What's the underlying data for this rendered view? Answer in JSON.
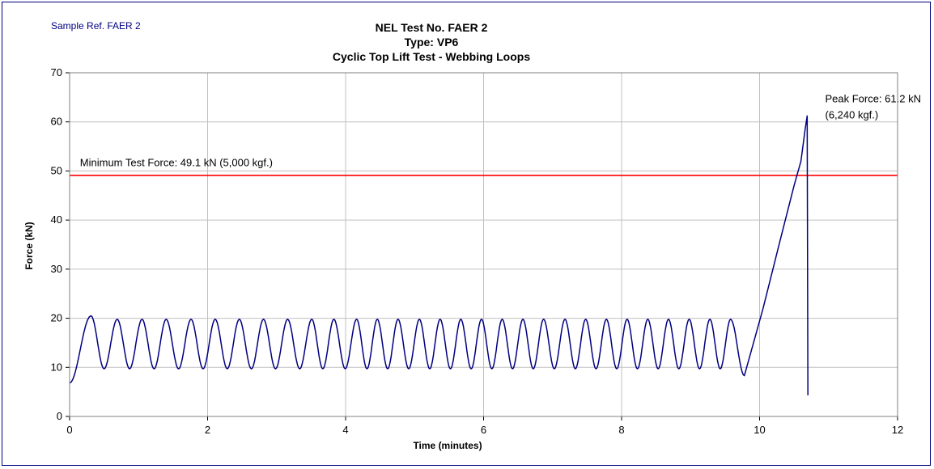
{
  "sample_ref": "Sample Ref. FAER 2",
  "chart_data": {
    "type": "line",
    "title": [
      "NEL Test No. FAER 2",
      "Type: VP6",
      "Cyclic Top Lift Test - Webbing Loops"
    ],
    "xlabel": "Time (minutes)",
    "ylabel": "Force (kN)",
    "xlim": [
      0,
      12
    ],
    "ylim": [
      0,
      70
    ],
    "x_ticks": [
      0,
      2,
      4,
      6,
      8,
      10,
      12
    ],
    "y_ticks": [
      0,
      10,
      20,
      30,
      40,
      50,
      60,
      70
    ],
    "grid": true,
    "series": [
      {
        "color": "#000080",
        "cycles": {
          "start_x": 0.0,
          "start_y": 6.8,
          "first_peak": {
            "x": 0.31,
            "y": 20.5
          },
          "peak_x": [
            0.31,
            0.69,
            1.05,
            1.4,
            1.76,
            2.11,
            2.46,
            2.81,
            3.16,
            3.51,
            3.83,
            4.16,
            4.46,
            4.76,
            5.07,
            5.37,
            5.67,
            5.97,
            6.27,
            6.57,
            6.87,
            7.18,
            7.48,
            7.78,
            8.08,
            8.38,
            8.68,
            8.98,
            9.28,
            9.58
          ],
          "peak_y": 19.8,
          "trough_y": 9.7,
          "final_trough": {
            "x": 9.78,
            "y": 8.3
          }
        },
        "ramp": [
          [
            9.78,
            8.3
          ],
          [
            10.05,
            22
          ],
          [
            10.3,
            36
          ],
          [
            10.5,
            47
          ],
          [
            10.6,
            52
          ],
          [
            10.66,
            58.5
          ],
          [
            10.69,
            61.2
          ]
        ],
        "drop": [
          [
            10.69,
            61.2
          ],
          [
            10.7,
            4.3
          ]
        ]
      },
      {
        "name": "Minimum Test Force",
        "type": "hline",
        "y": 49.1,
        "color": "#ff0000"
      }
    ],
    "annotations": [
      {
        "text": "Minimum Test Force: 49.1 kN (5,000 kgf.)",
        "x": 0.15,
        "y": 51.0
      },
      {
        "text": "Peak Force: 61.2 kN",
        "x": 10.95,
        "y": 64.0
      },
      {
        "text": "(6,240 kgf.)",
        "x": 10.95,
        "y": 60.7
      }
    ]
  }
}
